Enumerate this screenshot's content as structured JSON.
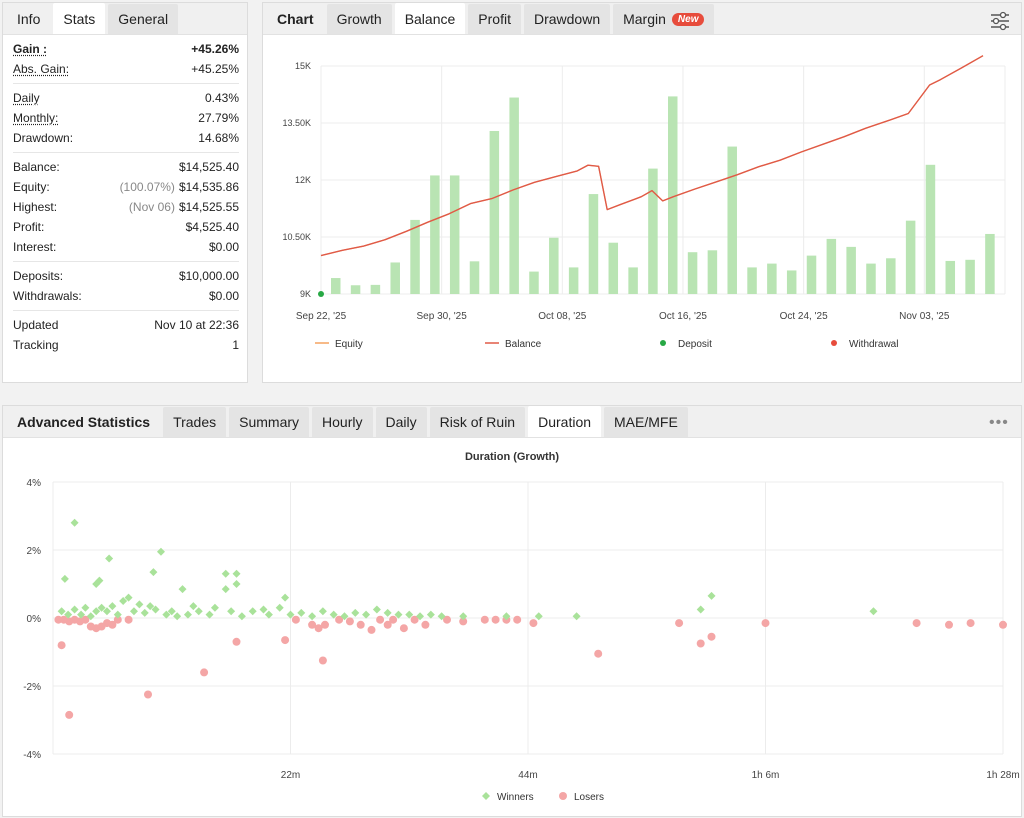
{
  "info_panel": {
    "tabs": [
      {
        "label": "Info",
        "active": false
      },
      {
        "label": "Stats",
        "active": true
      },
      {
        "label": "General",
        "active": false
      }
    ],
    "groups": [
      [
        {
          "label": "Gain :",
          "value": "+45.26%",
          "style": "green-bold",
          "underline": true
        },
        {
          "label": "Abs. Gain:",
          "value": "+45.25%",
          "style": "green",
          "underline": true
        }
      ],
      [
        {
          "label": "Daily",
          "value": "0.43%",
          "underline": true
        },
        {
          "label": "Monthly:",
          "value": "27.79%",
          "underline": true
        },
        {
          "label": "Drawdown:",
          "value": "14.68%"
        }
      ],
      [
        {
          "label": "Balance:",
          "value": "$14,525.40"
        },
        {
          "label": "Equity:",
          "sub": "(100.07%)",
          "value": "$14,535.86"
        },
        {
          "label": "Highest:",
          "sub": "(Nov 06)",
          "value": "$14,525.55"
        },
        {
          "label": "Profit:",
          "value": "$4,525.40",
          "style": "green"
        },
        {
          "label": "Interest:",
          "value": "$0.00"
        }
      ],
      [
        {
          "label": "Deposits:",
          "value": "$10,000.00"
        },
        {
          "label": "Withdrawals:",
          "value": "$0.00"
        }
      ],
      [
        {
          "label": "Updated",
          "value": "Nov 10 at 22:36"
        },
        {
          "label": "Tracking",
          "value": "1"
        }
      ]
    ]
  },
  "chart_panel": {
    "tabs": [
      {
        "label": "Chart",
        "active": false,
        "title": true
      },
      {
        "label": "Growth",
        "active": false
      },
      {
        "label": "Balance",
        "active": true
      },
      {
        "label": "Profit",
        "active": false
      },
      {
        "label": "Drawdown",
        "active": false
      },
      {
        "label": "Margin",
        "active": false,
        "badge": "New"
      }
    ],
    "settings_icon": "sliders-icon"
  },
  "stats_panel": {
    "tabs": [
      {
        "label": "Advanced Statistics",
        "active": false,
        "title": true
      },
      {
        "label": "Trades",
        "active": false
      },
      {
        "label": "Summary",
        "active": false
      },
      {
        "label": "Hourly",
        "active": false
      },
      {
        "label": "Daily",
        "active": false
      },
      {
        "label": "Risk of Ruin",
        "active": false
      },
      {
        "label": "Duration",
        "active": true
      },
      {
        "label": "MAE/MFE",
        "active": false
      }
    ],
    "more_icon": "more-dots-icon"
  },
  "colors": {
    "bar": "#b9e4b3",
    "equity": "#f4a261",
    "balance": "#e05a47",
    "deposit": "#27a844",
    "withdrawal": "#e74c3c",
    "winners": "#a9e29a",
    "losers": "#f4a6a6"
  },
  "chart_data": [
    {
      "type": "bar+line",
      "x_tick_labels": [
        "Sep 22, '25",
        "Sep 30, '25",
        "Oct 08, '25",
        "Oct 16, '25",
        "Oct 24, '25",
        "Nov 03, '25"
      ],
      "y_tick_labels": [
        "9K",
        "10.50K",
        "12K",
        "13.50K",
        "15K"
      ],
      "ylim": [
        9000,
        15000
      ],
      "grid": true,
      "bars": [
        9420,
        9230,
        9240,
        9830,
        10950,
        12120,
        12120,
        9860,
        13290,
        14170,
        9590,
        10480,
        9700,
        11630,
        10350,
        9700,
        12300,
        14200,
        10100,
        10150,
        12880,
        9700,
        9800,
        9620,
        10010,
        10450,
        10240,
        9800,
        9940,
        10930,
        12400,
        9870,
        9900,
        10580
      ],
      "series": [
        {
          "name": "Equity",
          "values": [
            [
              0,
              10010
            ],
            [
              2,
              10150
            ],
            [
              4,
              10260
            ],
            [
              6,
              10430
            ],
            [
              8,
              10650
            ],
            [
              10,
              10890
            ],
            [
              12,
              11110
            ],
            [
              14,
              11380
            ],
            [
              16,
              11510
            ],
            [
              18,
              11740
            ],
            [
              20,
              11940
            ],
            [
              22,
              12090
            ],
            [
              24,
              12240
            ],
            [
              25,
              12390
            ],
            [
              26,
              12360
            ],
            [
              26.8,
              11220
            ],
            [
              28,
              11350
            ],
            [
              30,
              11560
            ],
            [
              31,
              11720
            ],
            [
              32,
              11450
            ],
            [
              33,
              11560
            ],
            [
              35,
              11760
            ],
            [
              37,
              11950
            ],
            [
              39,
              12140
            ],
            [
              41,
              12350
            ],
            [
              43,
              12520
            ],
            [
              45,
              12740
            ],
            [
              47,
              12940
            ],
            [
              49,
              13140
            ],
            [
              51,
              13360
            ],
            [
              53,
              13550
            ],
            [
              55,
              13750
            ],
            [
              57,
              14500
            ],
            [
              58,
              14640
            ],
            [
              60,
              14950
            ],
            [
              62,
              15270
            ]
          ]
        },
        {
          "name": "Balance",
          "values": [
            [
              0,
              10010
            ],
            [
              2,
              10150
            ],
            [
              4,
              10260
            ],
            [
              6,
              10430
            ],
            [
              8,
              10650
            ],
            [
              10,
              10890
            ],
            [
              12,
              11110
            ],
            [
              14,
              11380
            ],
            [
              16,
              11510
            ],
            [
              18,
              11740
            ],
            [
              20,
              11940
            ],
            [
              22,
              12090
            ],
            [
              24,
              12240
            ],
            [
              25,
              12390
            ],
            [
              26,
              12360
            ],
            [
              26.8,
              11220
            ],
            [
              28,
              11350
            ],
            [
              30,
              11560
            ],
            [
              31,
              11720
            ],
            [
              32,
              11450
            ],
            [
              33,
              11560
            ],
            [
              35,
              11760
            ],
            [
              37,
              11950
            ],
            [
              39,
              12140
            ],
            [
              41,
              12350
            ],
            [
              43,
              12520
            ],
            [
              45,
              12740
            ],
            [
              47,
              12940
            ],
            [
              49,
              13140
            ],
            [
              51,
              13360
            ],
            [
              53,
              13550
            ],
            [
              55,
              13750
            ],
            [
              57,
              14500
            ],
            [
              58,
              14640
            ],
            [
              60,
              14950
            ],
            [
              62,
              15270
            ]
          ]
        }
      ],
      "deposits": [
        [
          0,
          9000
        ]
      ],
      "legend": [
        "Equity",
        "Balance",
        "Deposit",
        "Withdrawal"
      ]
    },
    {
      "type": "scatter",
      "title": "Duration (Growth)",
      "x_tick_labels": [
        "22m",
        "44m",
        "1h 6m",
        "1h 28m"
      ],
      "y_tick_labels": [
        "4%",
        "2%",
        "0%",
        "-2%",
        "-4%"
      ],
      "xlim": [
        0,
        88
      ],
      "ylim": [
        -4,
        4
      ],
      "series": [
        {
          "name": "Winners",
          "points": [
            [
              2,
              2.8
            ],
            [
              1.1,
              1.15
            ],
            [
              4.3,
              1.1
            ],
            [
              5.2,
              1.75
            ],
            [
              10,
              1.95
            ],
            [
              9.3,
              1.35
            ],
            [
              4,
              1.0
            ],
            [
              16,
              1.3
            ],
            [
              17,
              1.3
            ],
            [
              17,
              1.0
            ],
            [
              12,
              0.85
            ],
            [
              16,
              0.85
            ],
            [
              7,
              0.6
            ],
            [
              8,
              0.4
            ],
            [
              9,
              0.35
            ],
            [
              13,
              0.35
            ],
            [
              0.8,
              0.2
            ],
            [
              1.4,
              0.1
            ],
            [
              2,
              0.25
            ],
            [
              2.6,
              0.1
            ],
            [
              3,
              0.3
            ],
            [
              3.5,
              0.05
            ],
            [
              4,
              0.2
            ],
            [
              4.5,
              0.3
            ],
            [
              5,
              0.2
            ],
            [
              5.5,
              0.35
            ],
            [
              6,
              0.1
            ],
            [
              6.5,
              0.5
            ],
            [
              7.5,
              0.2
            ],
            [
              8.5,
              0.15
            ],
            [
              9.5,
              0.25
            ],
            [
              10.5,
              0.1
            ],
            [
              11,
              0.2
            ],
            [
              11.5,
              0.05
            ],
            [
              12.5,
              0.1
            ],
            [
              13.5,
              0.2
            ],
            [
              14.5,
              0.1
            ],
            [
              15,
              0.3
            ],
            [
              16.5,
              0.2
            ],
            [
              17.5,
              0.05
            ],
            [
              18.5,
              0.2
            ],
            [
              19.5,
              0.25
            ],
            [
              20,
              0.1
            ],
            [
              21,
              0.3
            ],
            [
              21.5,
              0.6
            ],
            [
              22,
              0.1
            ],
            [
              23,
              0.15
            ],
            [
              24,
              0.05
            ],
            [
              25,
              0.2
            ],
            [
              26,
              0.1
            ],
            [
              27,
              0.05
            ],
            [
              28,
              0.15
            ],
            [
              29,
              0.1
            ],
            [
              30,
              0.25
            ],
            [
              31,
              0.15
            ],
            [
              32,
              0.1
            ],
            [
              33,
              0.1
            ],
            [
              34,
              0.05
            ],
            [
              35,
              0.1
            ],
            [
              36,
              0.05
            ],
            [
              38,
              0.05
            ],
            [
              42,
              0.05
            ],
            [
              45,
              0.05
            ],
            [
              48.5,
              0.05
            ],
            [
              60,
              0.25
            ],
            [
              61,
              0.65
            ],
            [
              76,
              0.2
            ]
          ]
        },
        {
          "name": "Losers",
          "points": [
            [
              0.5,
              -0.05
            ],
            [
              1,
              -0.05
            ],
            [
              1.5,
              -0.1
            ],
            [
              2,
              -0.05
            ],
            [
              2.5,
              -0.1
            ],
            [
              3,
              -0.05
            ],
            [
              3.5,
              -0.25
            ],
            [
              4,
              -0.3
            ],
            [
              4.5,
              -0.25
            ],
            [
              5,
              -0.15
            ],
            [
              5.5,
              -0.2
            ],
            [
              6,
              -0.05
            ],
            [
              7,
              -0.05
            ],
            [
              0.8,
              -0.8
            ],
            [
              1.5,
              -2.85
            ],
            [
              8.8,
              -2.25
            ],
            [
              14,
              -1.6
            ],
            [
              17,
              -0.7
            ],
            [
              21.5,
              -0.65
            ],
            [
              22.5,
              -0.05
            ],
            [
              24,
              -0.2
            ],
            [
              24.6,
              -0.3
            ],
            [
              25,
              -1.25
            ],
            [
              25.2,
              -0.2
            ],
            [
              26.5,
              -0.05
            ],
            [
              27.5,
              -0.1
            ],
            [
              28.5,
              -0.2
            ],
            [
              29.5,
              -0.35
            ],
            [
              30.3,
              -0.05
            ],
            [
              31,
              -0.2
            ],
            [
              31.5,
              -0.05
            ],
            [
              32.5,
              -0.3
            ],
            [
              33.5,
              -0.05
            ],
            [
              34.5,
              -0.2
            ],
            [
              36.5,
              -0.05
            ],
            [
              38,
              -0.1
            ],
            [
              40,
              -0.05
            ],
            [
              41,
              -0.05
            ],
            [
              42,
              -0.05
            ],
            [
              43,
              -0.05
            ],
            [
              44.5,
              -0.15
            ],
            [
              50.5,
              -1.05
            ],
            [
              58,
              -0.15
            ],
            [
              60,
              -0.75
            ],
            [
              61,
              -0.55
            ],
            [
              66,
              -0.15
            ],
            [
              80,
              -0.15
            ],
            [
              83,
              -0.2
            ],
            [
              85,
              -0.15
            ],
            [
              88,
              -0.2
            ]
          ]
        }
      ],
      "legend": [
        "Winners",
        "Losers"
      ]
    }
  ]
}
